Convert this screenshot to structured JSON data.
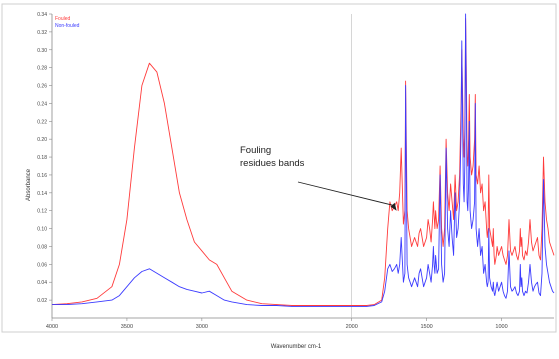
{
  "chart_data": {
    "type": "line",
    "xlabel": "Wavenumber cm-1",
    "ylabel": "Absorbance",
    "xlim": [
      4000,
      650
    ],
    "ylim": [
      0.0,
      0.34
    ],
    "x_ticks": [
      4000,
      3500,
      3000,
      2000,
      1500,
      1000,
      500
    ],
    "x_tick_labels": [
      "4000",
      "3500",
      "3000",
      "2000",
      "1500",
      "1000",
      "500"
    ],
    "y_ticks": [
      0.02,
      0.04,
      0.06,
      0.08,
      0.1,
      0.12,
      0.14,
      0.16,
      0.18,
      0.2,
      0.22,
      0.24,
      0.26,
      0.28,
      0.3,
      0.32,
      0.34
    ],
    "y_tick_labels": [
      "0.02",
      "0.04",
      "0.06",
      "0.08",
      "0.10",
      "0.12",
      "0.14",
      "0.16",
      "0.18",
      "0.20",
      "0.22",
      "0.24",
      "0.26",
      "0.28",
      "0.30",
      "0.32",
      "0.34"
    ],
    "legend_position": "top-left",
    "grid": false,
    "axis_break_at": 2000,
    "annotation": {
      "lines": [
        "Fouling",
        "residues bands"
      ],
      "points_to_x": 1700,
      "points_to_y": 0.12
    },
    "series": [
      {
        "name": "Fouled",
        "color": "#ff3b3b",
        "x": [
          4000,
          3900,
          3800,
          3700,
          3600,
          3550,
          3500,
          3450,
          3400,
          3350,
          3300,
          3250,
          3200,
          3150,
          3100,
          3050,
          3000,
          2950,
          2900,
          2850,
          2800,
          2700,
          2600,
          2500,
          2400,
          2300,
          2200,
          2100,
          2000,
          1900,
          1850,
          1800,
          1780,
          1760,
          1745,
          1730,
          1715,
          1700,
          1690,
          1680,
          1670,
          1655,
          1645,
          1640,
          1630,
          1620,
          1610,
          1600,
          1590,
          1580,
          1570,
          1560,
          1550,
          1540,
          1530,
          1520,
          1510,
          1500,
          1490,
          1480,
          1470,
          1460,
          1455,
          1450,
          1445,
          1440,
          1430,
          1420,
          1410,
          1400,
          1390,
          1380,
          1370,
          1360,
          1350,
          1340,
          1330,
          1320,
          1310,
          1300,
          1290,
          1280,
          1270,
          1265,
          1260,
          1255,
          1250,
          1245,
          1240,
          1235,
          1230,
          1225,
          1220,
          1215,
          1210,
          1200,
          1190,
          1180,
          1175,
          1170,
          1160,
          1150,
          1140,
          1130,
          1120,
          1110,
          1100,
          1095,
          1090,
          1085,
          1080,
          1070,
          1060,
          1055,
          1050,
          1045,
          1040,
          1035,
          1030,
          1020,
          1010,
          1000,
          990,
          980,
          970,
          960,
          950,
          940,
          930,
          920,
          910,
          900,
          890,
          880,
          875,
          870,
          865,
          860,
          850,
          840,
          830,
          820,
          810,
          800,
          790,
          780,
          770,
          760,
          750,
          740,
          730,
          720,
          710,
          700,
          690,
          680,
          670,
          660,
          650
        ],
        "y": [
          0.015,
          0.016,
          0.018,
          0.022,
          0.035,
          0.06,
          0.11,
          0.19,
          0.26,
          0.285,
          0.275,
          0.24,
          0.19,
          0.14,
          0.11,
          0.085,
          0.075,
          0.065,
          0.06,
          0.045,
          0.03,
          0.02,
          0.016,
          0.015,
          0.014,
          0.014,
          0.014,
          0.014,
          0.014,
          0.014,
          0.015,
          0.02,
          0.045,
          0.1,
          0.13,
          0.12,
          0.125,
          0.13,
          0.12,
          0.14,
          0.19,
          0.105,
          0.12,
          0.265,
          0.12,
          0.1,
          0.09,
          0.08,
          0.085,
          0.09,
          0.085,
          0.08,
          0.095,
          0.1,
          0.09,
          0.08,
          0.085,
          0.09,
          0.11,
          0.1,
          0.085,
          0.11,
          0.13,
          0.115,
          0.1,
          0.12,
          0.1,
          0.11,
          0.17,
          0.1,
          0.08,
          0.1,
          0.2,
          0.14,
          0.12,
          0.15,
          0.13,
          0.11,
          0.16,
          0.12,
          0.13,
          0.16,
          0.24,
          0.3,
          0.25,
          0.2,
          0.18,
          0.21,
          0.335,
          0.28,
          0.18,
          0.17,
          0.2,
          0.25,
          0.18,
          0.16,
          0.17,
          0.2,
          0.25,
          0.16,
          0.15,
          0.17,
          0.14,
          0.15,
          0.12,
          0.13,
          0.1,
          0.09,
          0.1,
          0.16,
          0.1,
          0.09,
          0.08,
          0.1,
          0.07,
          0.06,
          0.065,
          0.07,
          0.08,
          0.07,
          0.075,
          0.08,
          0.07,
          0.065,
          0.06,
          0.07,
          0.11,
          0.075,
          0.07,
          0.075,
          0.08,
          0.07,
          0.065,
          0.075,
          0.1,
          0.08,
          0.09,
          0.07,
          0.065,
          0.075,
          0.07,
          0.085,
          0.11,
          0.085,
          0.075,
          0.08,
          0.085,
          0.09,
          0.07,
          0.065,
          0.1,
          0.18,
          0.13,
          0.11,
          0.1,
          0.085,
          0.08,
          0.075,
          0.07
        ]
      },
      {
        "name": "Non-fouled",
        "color": "#3b3bff",
        "x": [
          4000,
          3900,
          3800,
          3700,
          3600,
          3550,
          3500,
          3450,
          3400,
          3350,
          3300,
          3250,
          3200,
          3150,
          3100,
          3050,
          3000,
          2950,
          2900,
          2850,
          2800,
          2700,
          2600,
          2500,
          2400,
          2300,
          2200,
          2100,
          2000,
          1900,
          1850,
          1800,
          1780,
          1760,
          1745,
          1730,
          1715,
          1700,
          1690,
          1680,
          1670,
          1655,
          1645,
          1640,
          1630,
          1620,
          1610,
          1600,
          1590,
          1580,
          1570,
          1560,
          1550,
          1540,
          1530,
          1520,
          1510,
          1500,
          1490,
          1480,
          1470,
          1460,
          1455,
          1450,
          1445,
          1440,
          1430,
          1420,
          1410,
          1400,
          1390,
          1380,
          1370,
          1360,
          1350,
          1340,
          1330,
          1320,
          1310,
          1300,
          1290,
          1280,
          1270,
          1265,
          1260,
          1255,
          1250,
          1245,
          1240,
          1235,
          1230,
          1225,
          1220,
          1215,
          1210,
          1200,
          1190,
          1180,
          1175,
          1170,
          1160,
          1150,
          1140,
          1130,
          1120,
          1110,
          1100,
          1095,
          1090,
          1085,
          1080,
          1070,
          1060,
          1055,
          1050,
          1045,
          1040,
          1035,
          1030,
          1020,
          1010,
          1000,
          990,
          980,
          970,
          960,
          950,
          940,
          930,
          920,
          910,
          900,
          890,
          880,
          875,
          870,
          865,
          860,
          850,
          840,
          830,
          820,
          810,
          800,
          790,
          780,
          770,
          760,
          750,
          740,
          730,
          720,
          710,
          700,
          690,
          680,
          670,
          660,
          650
        ],
        "y": [
          0.015,
          0.015,
          0.016,
          0.018,
          0.02,
          0.025,
          0.035,
          0.045,
          0.052,
          0.055,
          0.05,
          0.045,
          0.04,
          0.035,
          0.032,
          0.03,
          0.028,
          0.03,
          0.025,
          0.02,
          0.018,
          0.015,
          0.014,
          0.014,
          0.013,
          0.013,
          0.013,
          0.013,
          0.013,
          0.013,
          0.014,
          0.018,
          0.03,
          0.055,
          0.06,
          0.052,
          0.055,
          0.06,
          0.05,
          0.06,
          0.09,
          0.04,
          0.05,
          0.26,
          0.06,
          0.045,
          0.04,
          0.035,
          0.04,
          0.045,
          0.04,
          0.035,
          0.05,
          0.055,
          0.045,
          0.035,
          0.04,
          0.045,
          0.06,
          0.05,
          0.04,
          0.06,
          0.08,
          0.06,
          0.05,
          0.07,
          0.05,
          0.055,
          0.16,
          0.06,
          0.04,
          0.05,
          0.19,
          0.1,
          0.08,
          0.12,
          0.09,
          0.07,
          0.14,
          0.09,
          0.1,
          0.13,
          0.21,
          0.31,
          0.22,
          0.15,
          0.13,
          0.17,
          0.34,
          0.25,
          0.13,
          0.12,
          0.15,
          0.22,
          0.12,
          0.1,
          0.11,
          0.13,
          0.24,
          0.1,
          0.08,
          0.1,
          0.07,
          0.08,
          0.05,
          0.06,
          0.04,
          0.035,
          0.04,
          0.1,
          0.045,
          0.035,
          0.03,
          0.04,
          0.028,
          0.025,
          0.03,
          0.035,
          0.04,
          0.03,
          0.035,
          0.04,
          0.03,
          0.025,
          0.022,
          0.03,
          0.075,
          0.035,
          0.03,
          0.032,
          0.035,
          0.028,
          0.025,
          0.03,
          0.06,
          0.035,
          0.045,
          0.03,
          0.025,
          0.03,
          0.028,
          0.04,
          0.06,
          0.04,
          0.03,
          0.035,
          0.038,
          0.04,
          0.028,
          0.025,
          0.05,
          0.155,
          0.08,
          0.06,
          0.05,
          0.04,
          0.035,
          0.03,
          0.028
        ]
      }
    ]
  }
}
